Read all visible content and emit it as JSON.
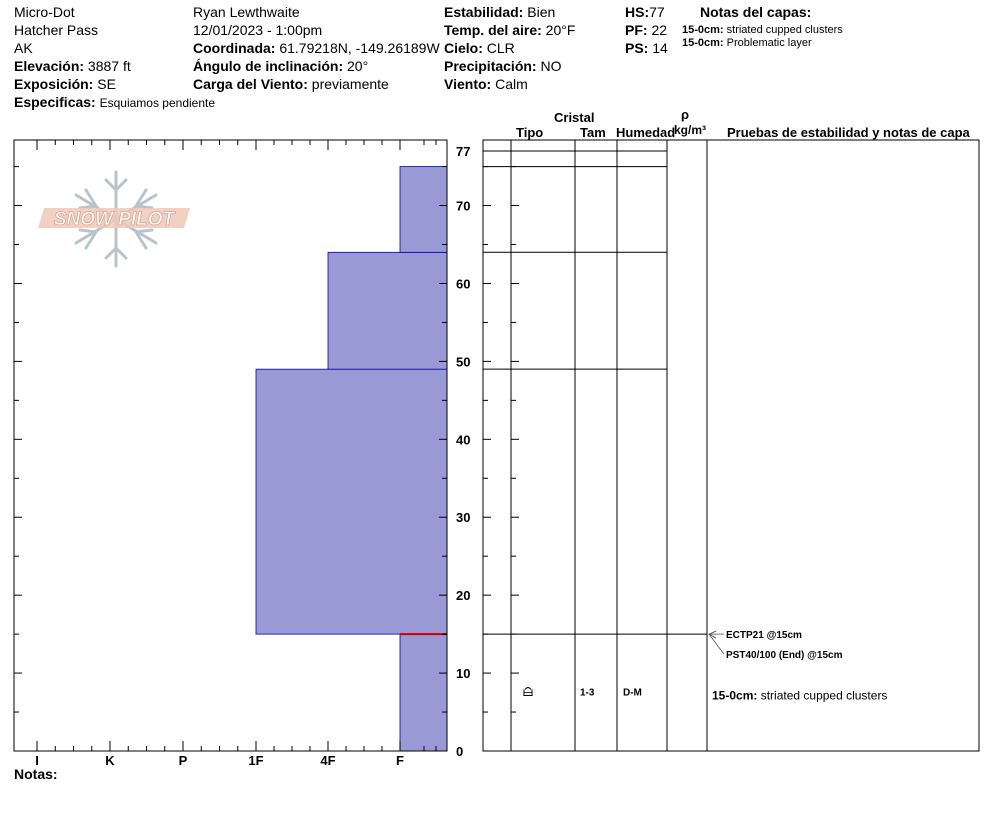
{
  "header": {
    "observer_group": "Micro-Dot",
    "location": "Hatcher Pass",
    "state": "AK",
    "elevation_label": "Elevación:",
    "elevation": "3887 ft",
    "aspect_label": "Exposición:",
    "aspect": "SE",
    "specifics_label": "Especificas:",
    "specifics": "Esquiamos pendiente",
    "observer": "Ryan Lewthwaite",
    "datetime": "12/01/2023 - 1:00pm",
    "coord_label": "Coordinada:",
    "coord": "61.79218N, -149.26189W",
    "incline_label": "Ángulo de inclinación:",
    "incline": "20°",
    "wind_load_label": "Carga del Viento:",
    "wind_load": "previamente",
    "stability_label": "Estabilidad:",
    "stability": "Bien",
    "air_temp_label": "Temp. del aire:",
    "air_temp": "20°F",
    "sky_label": "Cielo:",
    "sky": "CLR",
    "precip_label": "Precipitación:",
    "precip": "NO",
    "wind_label": "Viento:",
    "wind": "Calm",
    "hs_label": "HS:",
    "hs": "77",
    "pf_label": "PF:",
    "pf": "22",
    "ps_label": "PS:",
    "ps": "14",
    "layer_notes_title": "Notas del capas:",
    "layer_notes": [
      {
        "depth": "15-0cm:",
        "text": "striated cupped clusters"
      },
      {
        "depth": "15-0cm:",
        "text": "Problematic layer"
      }
    ],
    "notes_label": "Notas:",
    "logo_text": "SNOW PILOT"
  },
  "table_headers": {
    "cristal": "Cristal",
    "tipo": "Tipo",
    "tam": "Tam",
    "humedad": "Humedad",
    "rho": "ρ",
    "density_unit": "kg/m³",
    "tests": "Pruebas de estabilidad y notas de capa"
  },
  "colors": {
    "hardness_fill": "#9999d6",
    "hardness_stroke": "#0000aa",
    "weak_layer": "#cc0000",
    "line": "#000000"
  },
  "chart_data": {
    "type": "bar",
    "title": "",
    "xlabel": "",
    "ylabel": "",
    "x_categories": [
      "I",
      "K",
      "P",
      "1F",
      "4F",
      "F"
    ],
    "ylim": [
      0,
      77
    ],
    "y_ticks": [
      0,
      10,
      20,
      30,
      40,
      50,
      60,
      70,
      77
    ],
    "hardness_layers": [
      {
        "bottom": 0,
        "top": 15,
        "hardness": "F"
      },
      {
        "bottom": 15,
        "top": 49,
        "hardness": "1F"
      },
      {
        "bottom": 49,
        "top": 64,
        "hardness": "4F"
      },
      {
        "bottom": 64,
        "top": 75,
        "hardness": "F"
      }
    ],
    "layer_boundaries": [
      15,
      49,
      64,
      75
    ],
    "weak_layer_depth": 15,
    "crystal_layers": [
      {
        "bottom": 0,
        "top": 15,
        "type_icon": "cup-crystal-icon",
        "size": "1-3",
        "moisture": "D-M"
      }
    ],
    "stability_tests": [
      {
        "height": 15,
        "text": "ECTP21 @15cm"
      },
      {
        "height": 15,
        "text": "PST40/100 (End) @15cm"
      }
    ],
    "layer_comments": [
      {
        "height": 7,
        "depth": "15-0cm:",
        "text": "striated cupped clusters"
      }
    ]
  }
}
